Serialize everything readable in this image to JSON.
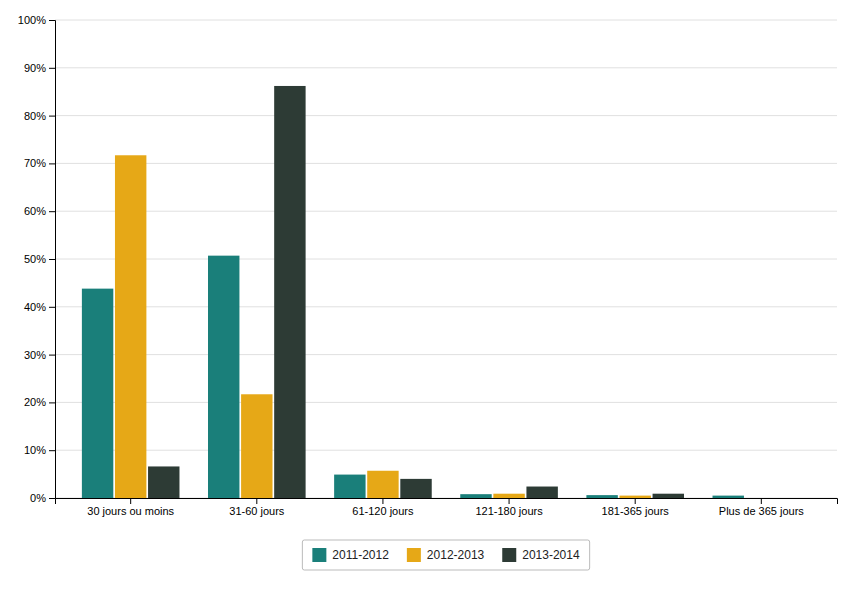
{
  "chart_data": {
    "type": "bar",
    "categories": [
      "30 jours ou moins",
      "31-60 jours",
      "61-120 jours",
      "121-180 jours",
      "181-365 jours",
      "Plus de 365 jours"
    ],
    "series": [
      {
        "name": "2011-2012",
        "color": "#1a7f7a",
        "values": [
          0.438,
          0.507,
          0.049,
          0.008,
          0.006,
          0.005
        ]
      },
      {
        "name": "2012-2013",
        "color": "#e6a817",
        "values": [
          0.717,
          0.217,
          0.057,
          0.009,
          0.005,
          0.0
        ]
      },
      {
        "name": "2013-2014",
        "color": "#2d3b35",
        "values": [
          0.066,
          0.862,
          0.04,
          0.024,
          0.009,
          0.0
        ]
      }
    ],
    "ylim": [
      0,
      1.0
    ],
    "yticks": [
      {
        "value": 0,
        "label": "0%"
      },
      {
        "value": 0.1,
        "label": "10%"
      },
      {
        "value": 0.2,
        "label": "20%"
      },
      {
        "value": 0.3,
        "label": "30%"
      },
      {
        "value": 0.4,
        "label": "40%"
      },
      {
        "value": 0.5,
        "label": "50%"
      },
      {
        "value": 0.6,
        "label": "60%"
      },
      {
        "value": 0.7,
        "label": "70%"
      },
      {
        "value": 0.8,
        "label": "80%"
      },
      {
        "value": 0.9,
        "label": "90%"
      },
      {
        "value": 1.0,
        "label": "100%"
      }
    ],
    "grid": true,
    "legend": "bottom"
  }
}
